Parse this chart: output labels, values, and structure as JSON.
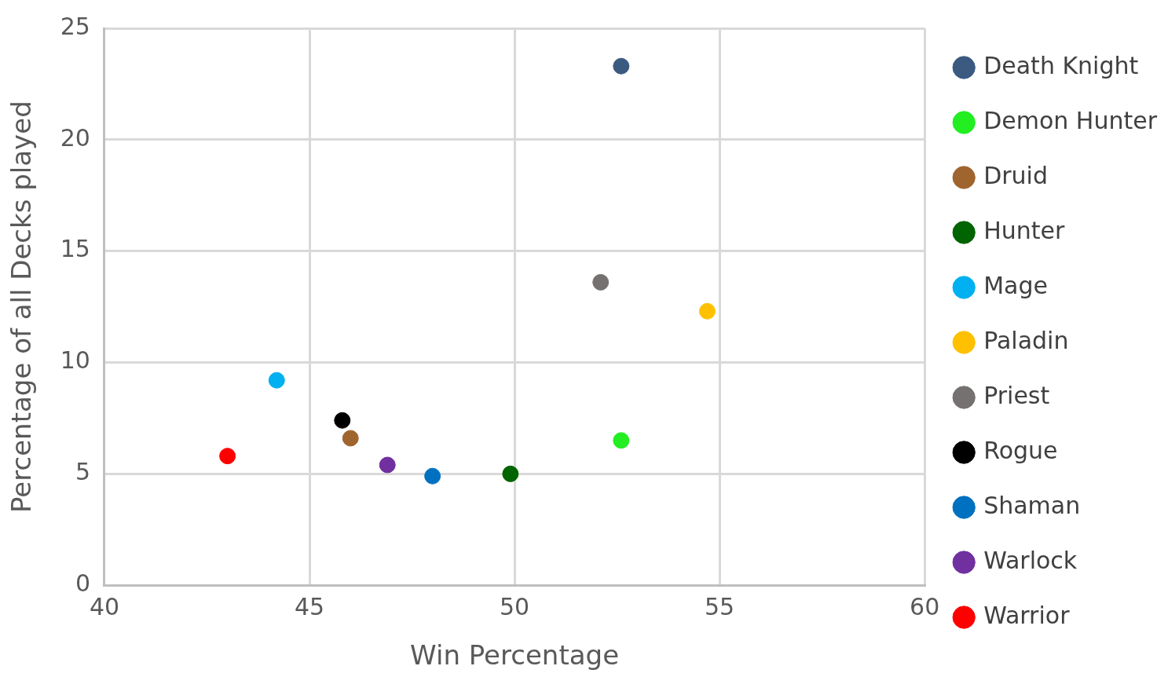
{
  "chart_data": {
    "type": "scatter",
    "xlabel": "Win Percentage",
    "ylabel": "Percentage of all Decks played",
    "xlim": [
      40,
      60
    ],
    "xticks": [
      40,
      45,
      50,
      55,
      60
    ],
    "ylim": [
      0,
      25
    ],
    "yticks": [
      0,
      5,
      10,
      15,
      20,
      25
    ],
    "grid": true,
    "legend": "right",
    "marker": "circle",
    "series": [
      {
        "name": "Death Knight",
        "color": "#3a5a80",
        "x": [
          52.6
        ],
        "values": [
          23.3
        ]
      },
      {
        "name": "Demon Hunter",
        "color": "#22ee22",
        "x": [
          52.6
        ],
        "values": [
          6.5
        ]
      },
      {
        "name": "Druid",
        "color": "#a0652f",
        "x": [
          46.0
        ],
        "values": [
          6.6
        ]
      },
      {
        "name": "Hunter",
        "color": "#006400",
        "x": [
          49.9
        ],
        "values": [
          5.0
        ]
      },
      {
        "name": "Mage",
        "color": "#00b0f0",
        "x": [
          44.2
        ],
        "values": [
          9.2
        ]
      },
      {
        "name": "Paladin",
        "color": "#ffc000",
        "x": [
          54.7
        ],
        "values": [
          12.3
        ]
      },
      {
        "name": "Priest",
        "color": "#767171",
        "x": [
          52.1
        ],
        "values": [
          13.6
        ]
      },
      {
        "name": "Rogue",
        "color": "#000000",
        "x": [
          45.8
        ],
        "values": [
          7.4
        ]
      },
      {
        "name": "Shaman",
        "color": "#0070c0",
        "x": [
          48.0
        ],
        "values": [
          4.9
        ]
      },
      {
        "name": "Warlock",
        "color": "#7030a0",
        "x": [
          46.9
        ],
        "values": [
          5.4
        ]
      },
      {
        "name": "Warrior",
        "color": "#ff0000",
        "x": [
          43.0
        ],
        "values": [
          5.8
        ]
      }
    ]
  }
}
